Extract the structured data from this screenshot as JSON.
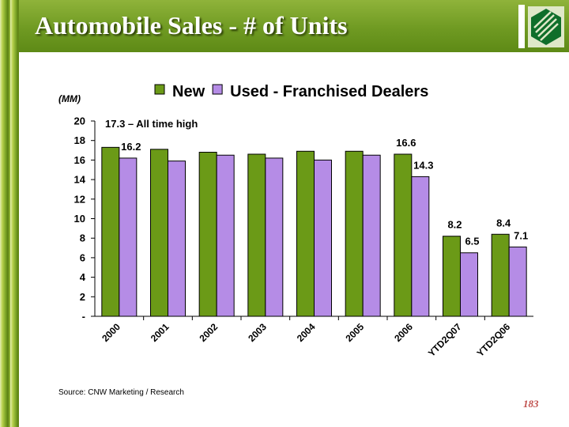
{
  "slide": {
    "title": "Automobile Sales - # of Units",
    "source": "Source: CNW Marketing / Research",
    "page_number": "183",
    "annotation": "17.3 – All time high",
    "colors": {
      "header": "#6f9a22",
      "new": "#6b9a17",
      "used": "#b58ce6",
      "page_number": "#c0504d"
    },
    "logo_icon": "bank-logo-icon"
  },
  "chart_data": {
    "type": "bar",
    "ylabel": "(MM)",
    "categories": [
      "2000",
      "2001",
      "2002",
      "2003",
      "2004",
      "2005",
      "2006",
      "YTD2Q07",
      "YTD2Q06"
    ],
    "series": [
      {
        "name": "New",
        "values": [
          17.3,
          17.1,
          16.8,
          16.6,
          16.9,
          16.9,
          16.6,
          8.2,
          8.4
        ]
      },
      {
        "name": "Used - Franchised Dealers",
        "values": [
          16.2,
          15.9,
          16.5,
          16.2,
          16.0,
          16.5,
          14.3,
          6.5,
          7.1
        ]
      }
    ],
    "data_labels": [
      {
        "series": 1,
        "index": 0,
        "text": "16.2"
      },
      {
        "series": 0,
        "index": 6,
        "text": "16.6"
      },
      {
        "series": 1,
        "index": 6,
        "text": "14.3"
      },
      {
        "series": 0,
        "index": 7,
        "text": "8.2"
      },
      {
        "series": 1,
        "index": 7,
        "text": "6.5"
      },
      {
        "series": 0,
        "index": 8,
        "text": "8.4"
      },
      {
        "series": 1,
        "index": 8,
        "text": "7.1"
      }
    ],
    "yticks": [
      "-",
      "2",
      "4",
      "6",
      "8",
      "10",
      "12",
      "14",
      "16",
      "18",
      "20"
    ],
    "ylim": [
      0,
      20
    ],
    "grid": false,
    "legend": "top"
  }
}
